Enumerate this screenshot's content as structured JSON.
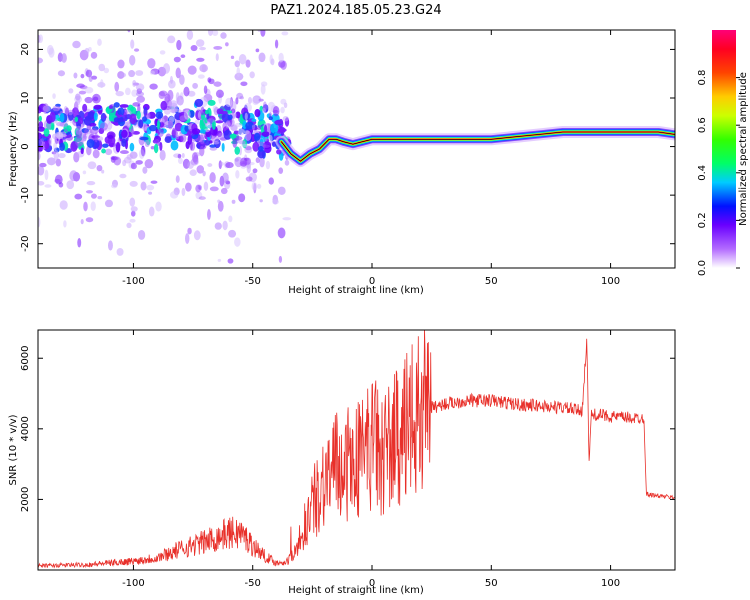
{
  "title": "PAZ1.2024.185.05.23.G24",
  "colors": {
    "snr_line": "#e8302a",
    "spectrogram_ridge": "#ff1a1a",
    "frame": "#000000"
  },
  "chart_data": [
    {
      "type": "heatmap",
      "name": "spectrogram",
      "xlabel": "Height of straight line (km)",
      "ylabel": "Frequency (Hz)",
      "xlim": [
        -140,
        127
      ],
      "ylim": [
        -25,
        24
      ],
      "xticks": [
        -100,
        -50,
        0,
        50,
        100
      ],
      "xtick_labels": [
        "-100",
        "-50",
        "0",
        "50",
        "100"
      ],
      "yticks": [
        -20,
        -10,
        0,
        10,
        20
      ],
      "ytick_labels": [
        "-20",
        "-10",
        "0",
        "10",
        "20"
      ],
      "colormap": "gist_rainbow",
      "colorbar": {
        "label": "Normalized spectral amplitude",
        "ticks": [
          0.0,
          0.2,
          0.4,
          0.6,
          0.8
        ],
        "tick_labels": [
          "0.0",
          "0.2",
          "0.4",
          "0.6",
          "0.8"
        ],
        "range": [
          0,
          1
        ]
      },
      "ridge": {
        "x": [
          -38,
          -34,
          -30,
          -26,
          -22,
          -18,
          -15,
          -12,
          -8,
          -4,
          0,
          5,
          10,
          20,
          30,
          40,
          50,
          60,
          70,
          80,
          90,
          100,
          110,
          120,
          127
        ],
        "y": [
          1,
          -1.5,
          -3,
          -1.5,
          -0.5,
          1.5,
          1.5,
          1,
          0.5,
          1,
          1.5,
          1.5,
          1.5,
          1.5,
          1.5,
          1.5,
          1.5,
          2,
          2.5,
          3,
          3,
          3,
          3,
          3,
          2.5
        ]
      },
      "scatter_band": {
        "x_range": [
          -140,
          -35
        ],
        "center_y": 4,
        "spread": 6
      }
    },
    {
      "type": "line",
      "name": "snr",
      "xlabel": "Height of straight line (km)",
      "ylabel": "SNR (10 * v/v)",
      "xlim": [
        -140,
        127
      ],
      "ylim": [
        0,
        6800
      ],
      "xticks": [
        -100,
        -50,
        0,
        50,
        100
      ],
      "xtick_labels": [
        "-100",
        "-50",
        "0",
        "50",
        "100"
      ],
      "yticks": [
        2000,
        4000,
        6000
      ],
      "ytick_labels": [
        "2000",
        "4000",
        "6000"
      ],
      "series": [
        {
          "x": [
            -140,
            -120,
            -100,
            -90,
            -80,
            -70,
            -60,
            -55,
            -50,
            -45,
            -40,
            -35,
            -30,
            -25,
            -20,
            -15,
            -10,
            -5,
            0,
            5,
            10,
            15,
            20,
            25,
            30,
            40,
            50,
            60,
            70,
            80,
            88,
            90,
            91,
            92,
            95,
            100,
            110,
            114,
            115,
            120,
            127
          ],
          "y": [
            120,
            150,
            250,
            350,
            600,
            800,
            1050,
            1050,
            700,
            400,
            200,
            250,
            900,
            1800,
            2600,
            2900,
            2900,
            3200,
            3600,
            3300,
            3700,
            4000,
            4400,
            4600,
            4700,
            4800,
            4800,
            4700,
            4650,
            4600,
            4500,
            6500,
            3100,
            4400,
            4400,
            4350,
            4300,
            4300,
            2150,
            2100,
            2050
          ]
        }
      ]
    }
  ]
}
